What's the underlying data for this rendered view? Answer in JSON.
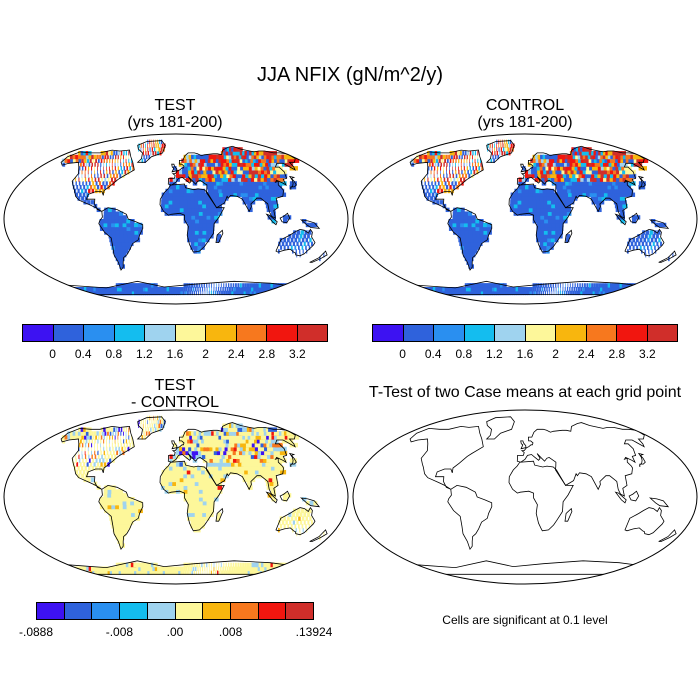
{
  "main_title": "JJA NFIX (gN/m^2/y)",
  "panels": {
    "test": {
      "title": "TEST",
      "subtitle": "(yrs 181-200)"
    },
    "control": {
      "title": "CONTROL",
      "subtitle": "(yrs 181-200)"
    },
    "diff": {
      "title": "TEST",
      "subtitle": "- CONTROL"
    },
    "ttest": {
      "title": "T-Test of two Case means at each grid point",
      "note": "Cells are significant at 0.1 level"
    }
  },
  "colorbar_main": {
    "colors": [
      "#3d12f2",
      "#2f62dc",
      "#2a8ff0",
      "#14bdef",
      "#9fd3ef",
      "#fdf79a",
      "#f8b60e",
      "#f7781e",
      "#f1160f",
      "#d02e2a"
    ],
    "labels": [
      "0",
      "0.4",
      "0.8",
      "1.2",
      "1.6",
      "2",
      "2.4",
      "2.8",
      "3.2"
    ]
  },
  "colorbar_diff": {
    "colors": [
      "#3d12f2",
      "#2f62dc",
      "#2a8ff0",
      "#14bdef",
      "#9fd3ef",
      "#fdf79a",
      "#f8b60e",
      "#f7781e",
      "#f1160f",
      "#d02e2a"
    ],
    "labels": [
      "-.0888",
      "-.008",
      ".00",
      ".008",
      ".13924"
    ]
  },
  "map_colors": {
    "ocean": "#ffffff",
    "land_main": "#2f62dc",
    "land_diff": "#fdf79a",
    "coast": "#000000"
  }
}
